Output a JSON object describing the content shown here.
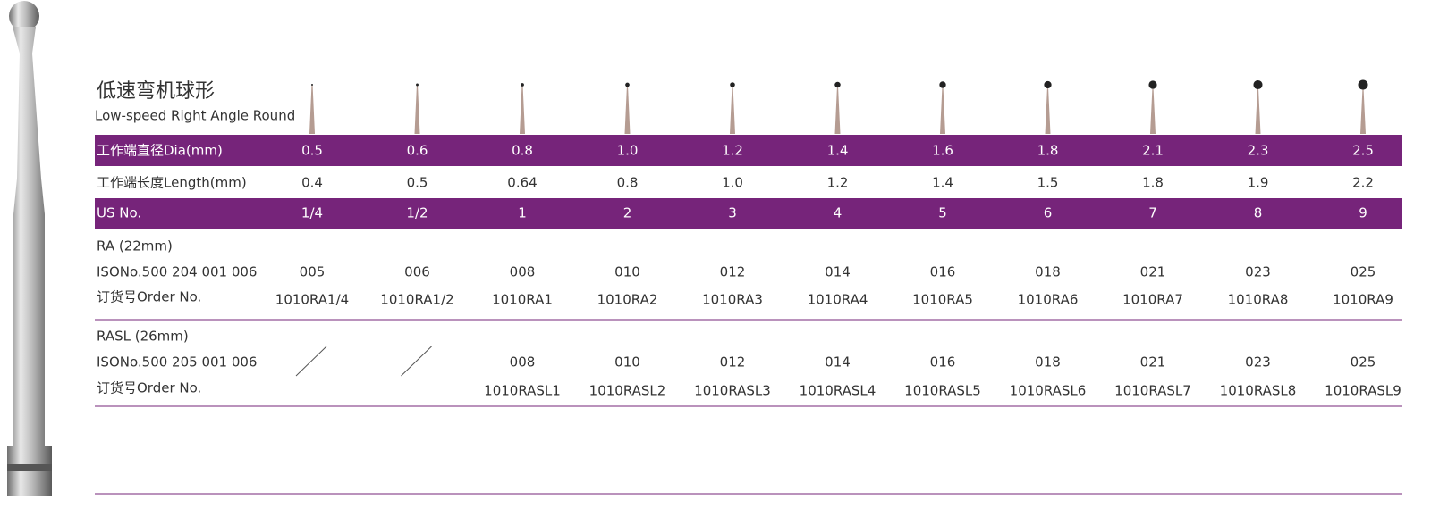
{
  "header": {
    "title": "低速弯机球形",
    "subtitle": "Low-speed Right Angle Round"
  },
  "table": {
    "rows": [
      {
        "label": "工作端直径Dia(mm)",
        "cells": [
          "0.5",
          "0.6",
          "0.8",
          "1.0",
          "1.2",
          "1.4",
          "1.6",
          "1.8",
          "2.1",
          "2.3",
          "2.5"
        ]
      },
      {
        "label": "工作端长度Length(mm)",
        "cells": [
          "0.4",
          "0.5",
          "0.64",
          "0.8",
          "1.0",
          "1.2",
          "1.4",
          "1.5",
          "1.8",
          "1.9",
          "2.2"
        ]
      },
      {
        "label": "US No.",
        "cells": [
          "1/4",
          "1/2",
          "1",
          "2",
          "3",
          "4",
          "5",
          "6",
          "7",
          "8",
          "9"
        ]
      }
    ],
    "blocks": [
      {
        "label": "RA (22mm)",
        "iso_label": "ISONo.500 204 001 006",
        "order_label": "订货号Order No.",
        "iso": [
          "005",
          "006",
          "008",
          "010",
          "012",
          "014",
          "016",
          "018",
          "021",
          "023",
          "025"
        ],
        "order": [
          "1010RA1/4",
          "1010RA1/2",
          "1010RA1",
          "1010RA2",
          "1010RA3",
          "1010RA4",
          "1010RA5",
          "1010RA6",
          "1010RA7",
          "1010RA8",
          "1010RA9"
        ]
      },
      {
        "label": "RASL (26mm)",
        "iso_label": "ISONo.500 205 001 006",
        "order_label": "订货号Order No.",
        "iso": [
          null,
          null,
          "008",
          "010",
          "012",
          "014",
          "016",
          "018",
          "021",
          "023",
          "025"
        ],
        "order": [
          null,
          null,
          "1010RASL1",
          "1010RASL2",
          "1010RASL3",
          "1010RASL4",
          "1010RASL5",
          "1010RASL6",
          "1010RASL7",
          "1010RASL8",
          "1010RASL9"
        ]
      }
    ]
  }
}
